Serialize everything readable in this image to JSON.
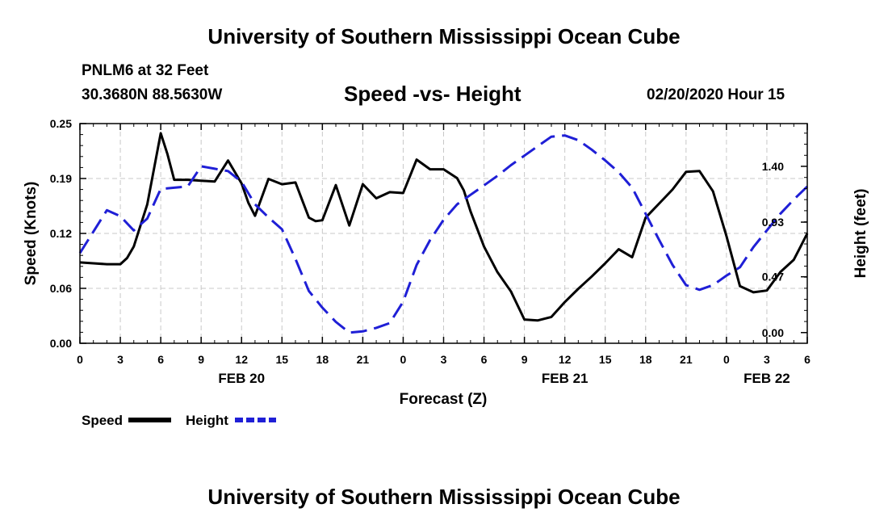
{
  "page": {
    "title_top": "University of Southern Mississippi Ocean Cube",
    "title_bottom": "University of Southern Mississippi Ocean Cube",
    "station": "PNLM6 at 32 Feet",
    "coords": "30.3680N 88.5630W",
    "run_time": "02/20/2020 Hour 15"
  },
  "chart_data": {
    "type": "line",
    "title": "Speed -vs- Height",
    "xlabel": "Forecast (Z)",
    "ylabel_left": "Speed (Knots)",
    "ylabel_right": "Height (feet)",
    "x_ticks": [
      "0",
      "3",
      "6",
      "9",
      "12",
      "15",
      "18",
      "21",
      "0",
      "3",
      "6",
      "9",
      "12",
      "15",
      "18",
      "21",
      "0",
      "3",
      "6"
    ],
    "x_range": [
      0,
      54
    ],
    "date_labels": [
      {
        "label": "FEB 20",
        "x": 12
      },
      {
        "label": "FEB 21",
        "x": 36
      },
      {
        "label": "FEB 22",
        "x": 51
      }
    ],
    "y_left_ticks": [
      "0.00",
      "0.06",
      "0.12",
      "0.19",
      "0.25"
    ],
    "y_left_range": [
      0,
      0.25
    ],
    "y_right_ticks": [
      "0.00",
      "0.47",
      "0.93",
      "1.40"
    ],
    "y_right_range": [
      -0.09,
      1.76
    ],
    "grid": true,
    "legend": "bottom-left",
    "series": [
      {
        "name": "Speed",
        "axis": "left",
        "color": "#000000",
        "style": "solid",
        "x": [
          0,
          1,
          2,
          3,
          3.5,
          4,
          5,
          6,
          6.5,
          7,
          8,
          9,
          10,
          11,
          12,
          12.5,
          13,
          14,
          15,
          16,
          16.5,
          17,
          17.5,
          18,
          19,
          20,
          21,
          22,
          23,
          24,
          25,
          26,
          27,
          28,
          28.5,
          29,
          30,
          31,
          32,
          33,
          34,
          35,
          36,
          37,
          38,
          39,
          40,
          41,
          42,
          43,
          44,
          45,
          46,
          47,
          48,
          49,
          50,
          51,
          52,
          53,
          53.5,
          54
        ],
        "values": [
          0.092,
          0.091,
          0.09,
          0.09,
          0.097,
          0.11,
          0.158,
          0.239,
          0.215,
          0.186,
          0.186,
          0.185,
          0.184,
          0.208,
          0.182,
          0.16,
          0.145,
          0.187,
          0.181,
          0.183,
          0.163,
          0.143,
          0.139,
          0.14,
          0.18,
          0.134,
          0.181,
          0.165,
          0.172,
          0.171,
          0.209,
          0.198,
          0.198,
          0.188,
          0.174,
          0.15,
          0.11,
          0.081,
          0.059,
          0.027,
          0.026,
          0.03,
          0.047,
          0.062,
          0.076,
          0.091,
          0.107,
          0.098,
          0.143,
          0.159,
          0.175,
          0.195,
          0.196,
          0.173,
          0.122,
          0.065,
          0.058,
          0.06,
          0.081,
          0.095,
          0.11,
          0.125
        ]
      },
      {
        "name": "Height",
        "axis": "right",
        "color": "#1f1fd6",
        "style": "dashed",
        "x": [
          0,
          1,
          2,
          3,
          4,
          5,
          6,
          7,
          8,
          9,
          10,
          11,
          12,
          13,
          14,
          15,
          16,
          17,
          18,
          19,
          20,
          21,
          22,
          23,
          24,
          25,
          26,
          27,
          28,
          29,
          30,
          31,
          32,
          33,
          34,
          35,
          36,
          37,
          38,
          39,
          40,
          41,
          42,
          43,
          44,
          45,
          46,
          47,
          48,
          49,
          50,
          51,
          52,
          53,
          54
        ],
        "values": [
          0.67,
          0.85,
          1.03,
          0.98,
          0.86,
          0.96,
          1.21,
          1.22,
          1.23,
          1.4,
          1.38,
          1.36,
          1.27,
          1.08,
          0.97,
          0.87,
          0.62,
          0.35,
          0.21,
          0.09,
          0.0,
          0.01,
          0.04,
          0.08,
          0.26,
          0.57,
          0.78,
          0.95,
          1.08,
          1.16,
          1.24,
          1.32,
          1.41,
          1.49,
          1.57,
          1.65,
          1.66,
          1.62,
          1.54,
          1.45,
          1.35,
          1.22,
          1.0,
          0.78,
          0.57,
          0.4,
          0.36,
          0.4,
          0.48,
          0.55,
          0.72,
          0.86,
          1.0,
          1.12,
          1.23
        ]
      }
    ]
  }
}
